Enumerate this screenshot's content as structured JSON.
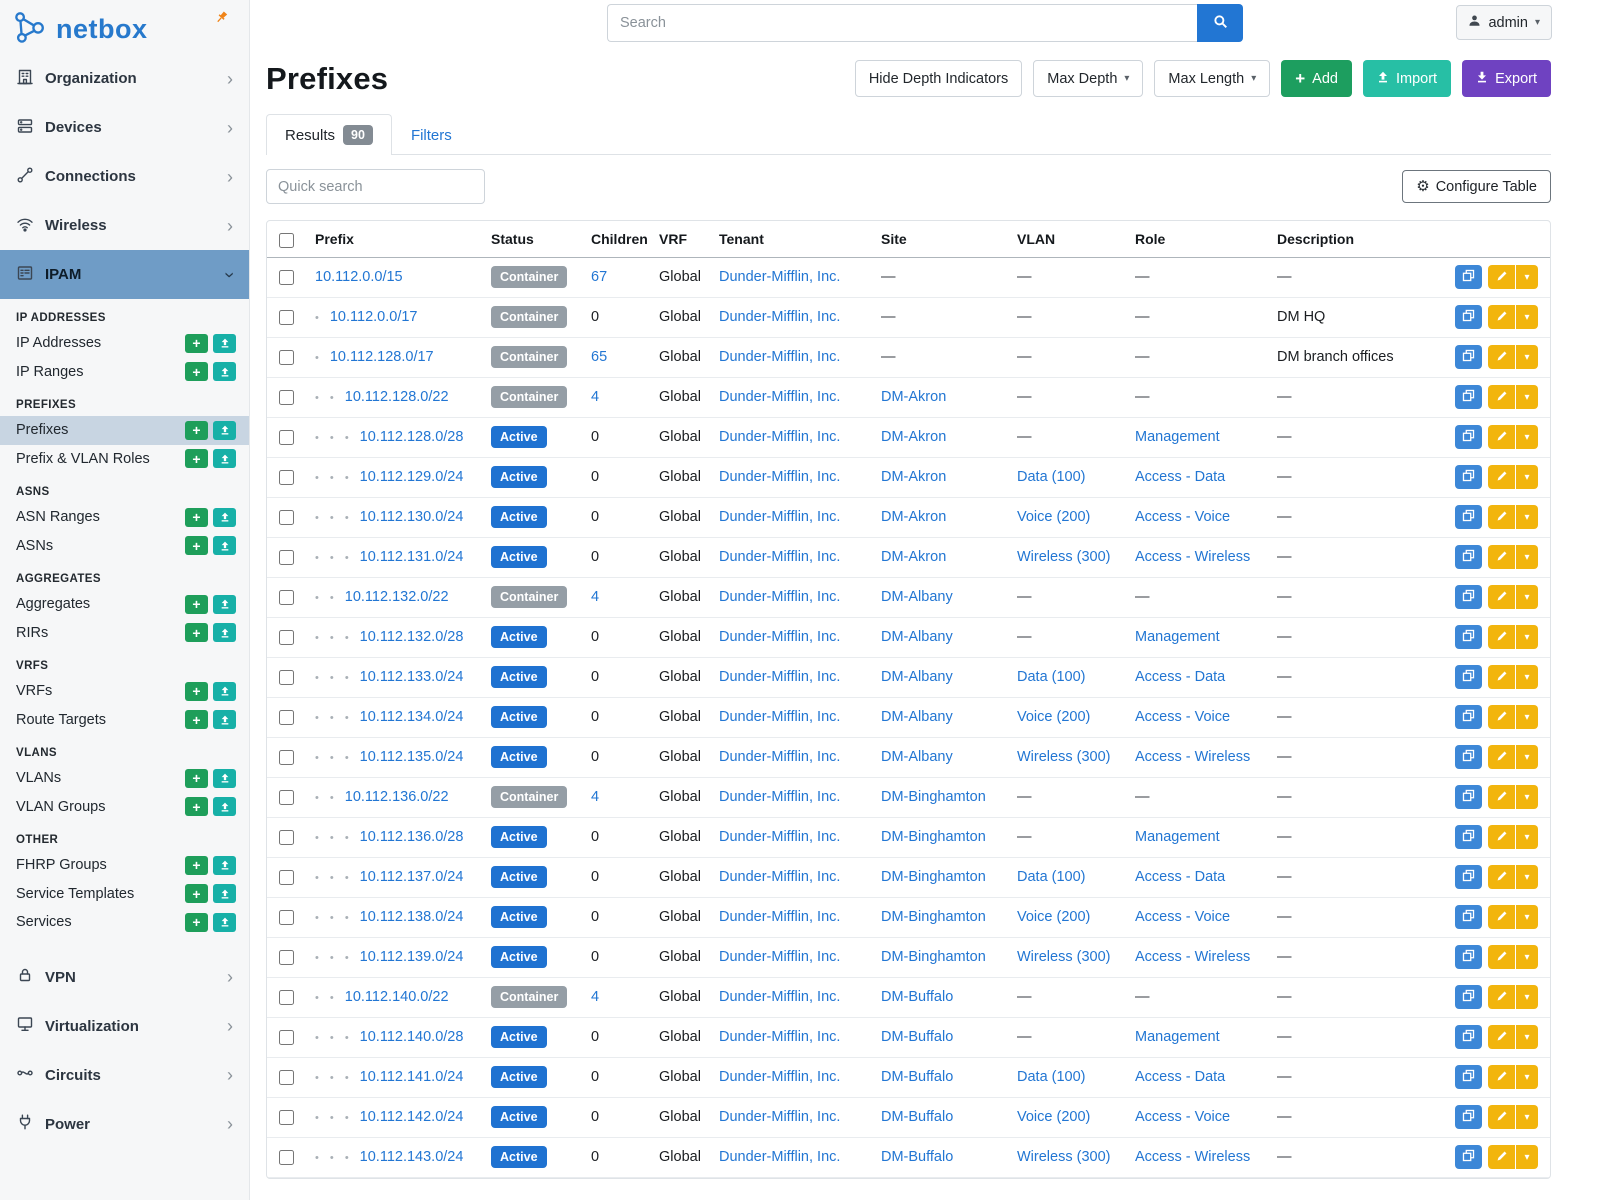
{
  "brand": {
    "name": "netbox"
  },
  "topbar": {
    "search_placeholder": "Search",
    "user": "admin"
  },
  "colors": {
    "brand_blue": "#2779cc",
    "link_blue": "#2276d3",
    "active_badge_blue": "#1f72d1",
    "container_badge_gray": "#959ea6",
    "add_green": "#1d9e5f",
    "import_teal": "#27bfa5",
    "export_purple": "#6f42c1",
    "edit_yellow": "#f2b50d",
    "sidebar_active_blue": "#6f9cc6"
  },
  "sidebar": {
    "top_items": [
      {
        "label": "Organization",
        "icon": "building-icon"
      },
      {
        "label": "Devices",
        "icon": "devices-icon"
      },
      {
        "label": "Connections",
        "icon": "connections-icon"
      },
      {
        "label": "Wireless",
        "icon": "wifi-icon"
      }
    ],
    "active_section": {
      "label": "IPAM",
      "icon": "ipam-icon"
    },
    "groups": [
      {
        "header": "IP ADDRESSES",
        "items": [
          "IP Addresses",
          "IP Ranges"
        ]
      },
      {
        "header": "PREFIXES",
        "items": [
          "Prefixes",
          "Prefix & VLAN Roles"
        ],
        "active": "Prefixes"
      },
      {
        "header": "ASNS",
        "items": [
          "ASN Ranges",
          "ASNs"
        ]
      },
      {
        "header": "AGGREGATES",
        "items": [
          "Aggregates",
          "RIRs"
        ]
      },
      {
        "header": "VRFS",
        "items": [
          "VRFs",
          "Route Targets"
        ]
      },
      {
        "header": "VLANS",
        "items": [
          "VLANs",
          "VLAN Groups"
        ]
      },
      {
        "header": "OTHER",
        "items": [
          "FHRP Groups",
          "Service Templates",
          "Services"
        ]
      }
    ],
    "bottom_items": [
      {
        "label": "VPN",
        "icon": "vpn-icon"
      },
      {
        "label": "Virtualization",
        "icon": "virtualization-icon"
      },
      {
        "label": "Circuits",
        "icon": "circuits-icon"
      },
      {
        "label": "Power",
        "icon": "power-icon"
      }
    ]
  },
  "page": {
    "title": "Prefixes",
    "buttons": {
      "hide_depth": "Hide Depth Indicators",
      "max_depth": "Max Depth",
      "max_length": "Max Length",
      "add": "Add",
      "import": "Import",
      "export": "Export"
    },
    "tabs": [
      {
        "label": "Results",
        "badge": "90"
      },
      {
        "label": "Filters"
      }
    ],
    "quick_search_placeholder": "Quick search",
    "configure_table": "Configure Table"
  },
  "table": {
    "columns": [
      "Prefix",
      "Status",
      "Children",
      "VRF",
      "Tenant",
      "Site",
      "VLAN",
      "Role",
      "Description"
    ],
    "rows": [
      {
        "depth": 0,
        "prefix": "10.112.0.0/15",
        "status": "Container",
        "children": "67",
        "vrf": "Global",
        "tenant": "Dunder-Mifflin, Inc.",
        "site": "—",
        "vlan": "—",
        "role": "—",
        "description": "—"
      },
      {
        "depth": 1,
        "prefix": "10.112.0.0/17",
        "status": "Container",
        "children": "0",
        "vrf": "Global",
        "tenant": "Dunder-Mifflin, Inc.",
        "site": "—",
        "vlan": "—",
        "role": "—",
        "description": "DM HQ"
      },
      {
        "depth": 1,
        "prefix": "10.112.128.0/17",
        "status": "Container",
        "children": "65",
        "vrf": "Global",
        "tenant": "Dunder-Mifflin, Inc.",
        "site": "—",
        "vlan": "—",
        "role": "—",
        "description": "DM branch offices"
      },
      {
        "depth": 2,
        "prefix": "10.112.128.0/22",
        "status": "Container",
        "children": "4",
        "vrf": "Global",
        "tenant": "Dunder-Mifflin, Inc.",
        "site": "DM-Akron",
        "vlan": "—",
        "role": "—",
        "description": "—"
      },
      {
        "depth": 3,
        "prefix": "10.112.128.0/28",
        "status": "Active",
        "children": "0",
        "vrf": "Global",
        "tenant": "Dunder-Mifflin, Inc.",
        "site": "DM-Akron",
        "vlan": "—",
        "role": "Management",
        "description": "—"
      },
      {
        "depth": 3,
        "prefix": "10.112.129.0/24",
        "status": "Active",
        "children": "0",
        "vrf": "Global",
        "tenant": "Dunder-Mifflin, Inc.",
        "site": "DM-Akron",
        "vlan": "Data (100)",
        "role": "Access - Data",
        "description": "—"
      },
      {
        "depth": 3,
        "prefix": "10.112.130.0/24",
        "status": "Active",
        "children": "0",
        "vrf": "Global",
        "tenant": "Dunder-Mifflin, Inc.",
        "site": "DM-Akron",
        "vlan": "Voice (200)",
        "role": "Access - Voice",
        "description": "—"
      },
      {
        "depth": 3,
        "prefix": "10.112.131.0/24",
        "status": "Active",
        "children": "0",
        "vrf": "Global",
        "tenant": "Dunder-Mifflin, Inc.",
        "site": "DM-Akron",
        "vlan": "Wireless (300)",
        "role": "Access - Wireless",
        "description": "—"
      },
      {
        "depth": 2,
        "prefix": "10.112.132.0/22",
        "status": "Container",
        "children": "4",
        "vrf": "Global",
        "tenant": "Dunder-Mifflin, Inc.",
        "site": "DM-Albany",
        "vlan": "—",
        "role": "—",
        "description": "—"
      },
      {
        "depth": 3,
        "prefix": "10.112.132.0/28",
        "status": "Active",
        "children": "0",
        "vrf": "Global",
        "tenant": "Dunder-Mifflin, Inc.",
        "site": "DM-Albany",
        "vlan": "—",
        "role": "Management",
        "description": "—"
      },
      {
        "depth": 3,
        "prefix": "10.112.133.0/24",
        "status": "Active",
        "children": "0",
        "vrf": "Global",
        "tenant": "Dunder-Mifflin, Inc.",
        "site": "DM-Albany",
        "vlan": "Data (100)",
        "role": "Access - Data",
        "description": "—"
      },
      {
        "depth": 3,
        "prefix": "10.112.134.0/24",
        "status": "Active",
        "children": "0",
        "vrf": "Global",
        "tenant": "Dunder-Mifflin, Inc.",
        "site": "DM-Albany",
        "vlan": "Voice (200)",
        "role": "Access - Voice",
        "description": "—"
      },
      {
        "depth": 3,
        "prefix": "10.112.135.0/24",
        "status": "Active",
        "children": "0",
        "vrf": "Global",
        "tenant": "Dunder-Mifflin, Inc.",
        "site": "DM-Albany",
        "vlan": "Wireless (300)",
        "role": "Access - Wireless",
        "description": "—"
      },
      {
        "depth": 2,
        "prefix": "10.112.136.0/22",
        "status": "Container",
        "children": "4",
        "vrf": "Global",
        "tenant": "Dunder-Mifflin, Inc.",
        "site": "DM-Binghamton",
        "vlan": "—",
        "role": "—",
        "description": "—"
      },
      {
        "depth": 3,
        "prefix": "10.112.136.0/28",
        "status": "Active",
        "children": "0",
        "vrf": "Global",
        "tenant": "Dunder-Mifflin, Inc.",
        "site": "DM-Binghamton",
        "vlan": "—",
        "role": "Management",
        "description": "—"
      },
      {
        "depth": 3,
        "prefix": "10.112.137.0/24",
        "status": "Active",
        "children": "0",
        "vrf": "Global",
        "tenant": "Dunder-Mifflin, Inc.",
        "site": "DM-Binghamton",
        "vlan": "Data (100)",
        "role": "Access - Data",
        "description": "—"
      },
      {
        "depth": 3,
        "prefix": "10.112.138.0/24",
        "status": "Active",
        "children": "0",
        "vrf": "Global",
        "tenant": "Dunder-Mifflin, Inc.",
        "site": "DM-Binghamton",
        "vlan": "Voice (200)",
        "role": "Access - Voice",
        "description": "—"
      },
      {
        "depth": 3,
        "prefix": "10.112.139.0/24",
        "status": "Active",
        "children": "0",
        "vrf": "Global",
        "tenant": "Dunder-Mifflin, Inc.",
        "site": "DM-Binghamton",
        "vlan": "Wireless (300)",
        "role": "Access - Wireless",
        "description": "—"
      },
      {
        "depth": 2,
        "prefix": "10.112.140.0/22",
        "status": "Container",
        "children": "4",
        "vrf": "Global",
        "tenant": "Dunder-Mifflin, Inc.",
        "site": "DM-Buffalo",
        "vlan": "—",
        "role": "—",
        "description": "—"
      },
      {
        "depth": 3,
        "prefix": "10.112.140.0/28",
        "status": "Active",
        "children": "0",
        "vrf": "Global",
        "tenant": "Dunder-Mifflin, Inc.",
        "site": "DM-Buffalo",
        "vlan": "—",
        "role": "Management",
        "description": "—"
      },
      {
        "depth": 3,
        "prefix": "10.112.141.0/24",
        "status": "Active",
        "children": "0",
        "vrf": "Global",
        "tenant": "Dunder-Mifflin, Inc.",
        "site": "DM-Buffalo",
        "vlan": "Data (100)",
        "role": "Access - Data",
        "description": "—"
      },
      {
        "depth": 3,
        "prefix": "10.112.142.0/24",
        "status": "Active",
        "children": "0",
        "vrf": "Global",
        "tenant": "Dunder-Mifflin, Inc.",
        "site": "DM-Buffalo",
        "vlan": "Voice (200)",
        "role": "Access - Voice",
        "description": "—"
      },
      {
        "depth": 3,
        "prefix": "10.112.143.0/24",
        "status": "Active",
        "children": "0",
        "vrf": "Global",
        "tenant": "Dunder-Mifflin, Inc.",
        "site": "DM-Buffalo",
        "vlan": "Wireless (300)",
        "role": "Access - Wireless",
        "description": "—"
      }
    ]
  }
}
